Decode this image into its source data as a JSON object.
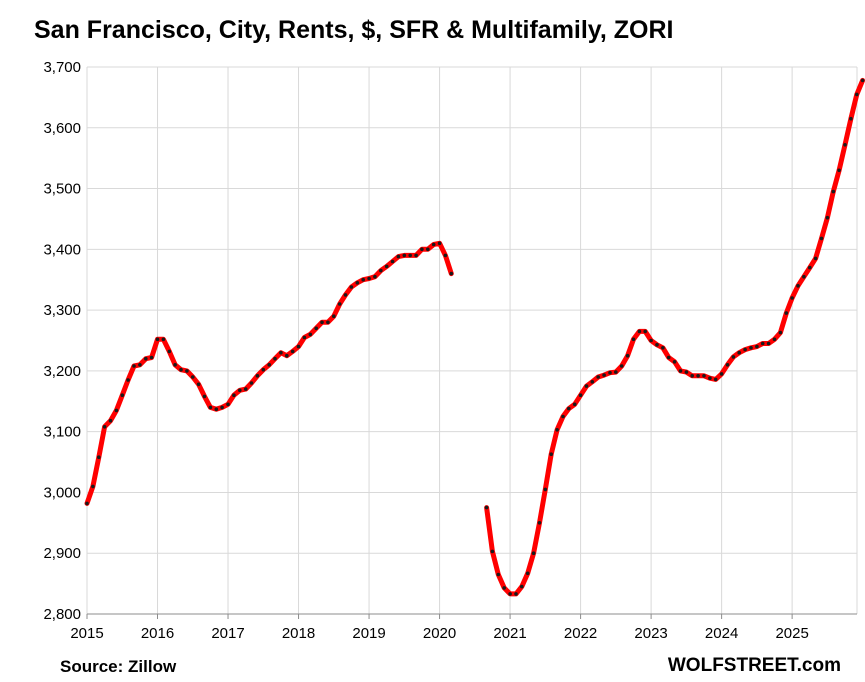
{
  "chart_data": {
    "type": "line",
    "title": "San Francisco, City, Rents, $, SFR & Multifamily, ZORI",
    "xlabel": "",
    "ylabel": "",
    "ylim": [
      2800,
      3700
    ],
    "xlim": [
      2015,
      2025.92
    ],
    "y_ticks": [
      "2,800",
      "2,900",
      "3,000",
      "3,100",
      "3,200",
      "3,300",
      "3,400",
      "3,500",
      "3,600",
      "3,700"
    ],
    "x_ticks": [
      "2015",
      "2016",
      "2017",
      "2018",
      "2019",
      "2020",
      "2021",
      "2022",
      "2023",
      "2024",
      "2025"
    ],
    "grid": true,
    "legend": "none",
    "series": [
      {
        "line_color": "#ff0000",
        "marker_color": "#1a1a1a",
        "segments": [
          [
            [
              "2015-01",
              2982
            ],
            [
              "2015-02",
              3010
            ],
            [
              "2015-03",
              3058
            ],
            [
              "2015-04",
              3108
            ],
            [
              "2015-05",
              3118
            ],
            [
              "2015-06",
              3135
            ],
            [
              "2015-07",
              3160
            ],
            [
              "2015-08",
              3185
            ],
            [
              "2015-09",
              3208
            ],
            [
              "2015-10",
              3210
            ],
            [
              "2015-11",
              3220
            ],
            [
              "2015-12",
              3222
            ],
            [
              "2016-01",
              3252
            ],
            [
              "2016-02",
              3252
            ],
            [
              "2016-03",
              3232
            ],
            [
              "2016-04",
              3210
            ],
            [
              "2016-05",
              3202
            ],
            [
              "2016-06",
              3200
            ],
            [
              "2016-07",
              3190
            ],
            [
              "2016-08",
              3178
            ],
            [
              "2016-09",
              3158
            ],
            [
              "2016-10",
              3140
            ],
            [
              "2016-11",
              3137
            ],
            [
              "2016-12",
              3140
            ],
            [
              "2017-01",
              3145
            ],
            [
              "2017-02",
              3160
            ],
            [
              "2017-03",
              3168
            ],
            [
              "2017-04",
              3170
            ],
            [
              "2017-05",
              3180
            ],
            [
              "2017-06",
              3192
            ],
            [
              "2017-07",
              3202
            ],
            [
              "2017-08",
              3210
            ],
            [
              "2017-09",
              3220
            ],
            [
              "2017-10",
              3230
            ],
            [
              "2017-11",
              3225
            ],
            [
              "2017-12",
              3232
            ],
            [
              "2018-01",
              3240
            ],
            [
              "2018-02",
              3255
            ],
            [
              "2018-03",
              3260
            ],
            [
              "2018-04",
              3270
            ],
            [
              "2018-05",
              3280
            ],
            [
              "2018-06",
              3280
            ],
            [
              "2018-07",
              3290
            ],
            [
              "2018-08",
              3310
            ],
            [
              "2018-09",
              3325
            ],
            [
              "2018-10",
              3338
            ],
            [
              "2018-11",
              3345
            ],
            [
              "2018-12",
              3350
            ],
            [
              "2019-01",
              3352
            ],
            [
              "2019-02",
              3355
            ],
            [
              "2019-03",
              3365
            ],
            [
              "2019-04",
              3372
            ],
            [
              "2019-05",
              3380
            ],
            [
              "2019-06",
              3388
            ],
            [
              "2019-07",
              3390
            ],
            [
              "2019-08",
              3390
            ],
            [
              "2019-09",
              3390
            ],
            [
              "2019-10",
              3400
            ],
            [
              "2019-11",
              3400
            ],
            [
              "2019-12",
              3408
            ],
            [
              "2020-01",
              3410
            ],
            [
              "2020-02",
              3390
            ],
            [
              "2020-03",
              3360
            ]
          ],
          [
            [
              "2020-09",
              2975
            ],
            [
              "2020-10",
              2903
            ],
            [
              "2020-11",
              2865
            ],
            [
              "2020-12",
              2843
            ],
            [
              "2021-01",
              2833
            ],
            [
              "2021-02",
              2833
            ],
            [
              "2021-03",
              2845
            ],
            [
              "2021-04",
              2867
            ],
            [
              "2021-05",
              2900
            ],
            [
              "2021-06",
              2950
            ],
            [
              "2021-07",
              3005
            ],
            [
              "2021-08",
              3063
            ],
            [
              "2021-09",
              3103
            ],
            [
              "2021-10",
              3125
            ],
            [
              "2021-11",
              3138
            ],
            [
              "2021-12",
              3145
            ],
            [
              "2022-01",
              3160
            ],
            [
              "2022-02",
              3175
            ],
            [
              "2022-03",
              3182
            ],
            [
              "2022-04",
              3190
            ],
            [
              "2022-05",
              3193
            ],
            [
              "2022-06",
              3197
            ],
            [
              "2022-07",
              3198
            ],
            [
              "2022-08",
              3208
            ],
            [
              "2022-09",
              3225
            ],
            [
              "2022-10",
              3252
            ],
            [
              "2022-11",
              3265
            ],
            [
              "2022-12",
              3265
            ],
            [
              "2023-01",
              3250
            ],
            [
              "2023-02",
              3243
            ],
            [
              "2023-03",
              3238
            ],
            [
              "2023-04",
              3222
            ],
            [
              "2023-05",
              3215
            ],
            [
              "2023-06",
              3200
            ],
            [
              "2023-07",
              3198
            ],
            [
              "2023-08",
              3192
            ],
            [
              "2023-09",
              3192
            ],
            [
              "2023-10",
              3192
            ],
            [
              "2023-11",
              3188
            ],
            [
              "2023-12",
              3186
            ],
            [
              "2024-01",
              3195
            ],
            [
              "2024-02",
              3210
            ],
            [
              "2024-03",
              3223
            ],
            [
              "2024-04",
              3230
            ],
            [
              "2024-05",
              3235
            ],
            [
              "2024-06",
              3238
            ],
            [
              "2024-07",
              3240
            ],
            [
              "2024-08",
              3245
            ],
            [
              "2024-09",
              3245
            ],
            [
              "2024-10",
              3252
            ],
            [
              "2024-11",
              3263
            ],
            [
              "2024-12",
              3295
            ],
            [
              "2025-01",
              3320
            ],
            [
              "2025-02",
              3340
            ],
            [
              "2025-03",
              3355
            ],
            [
              "2025-04",
              3370
            ],
            [
              "2025-05",
              3385
            ],
            [
              "2025-06",
              3418
            ],
            [
              "2025-07",
              3452
            ],
            [
              "2025-08",
              3495
            ],
            [
              "2025-09",
              3530
            ],
            [
              "2025-10",
              3572
            ],
            [
              "2025-11",
              3615
            ],
            [
              "2025-12",
              3655
            ],
            [
              "2026-01",
              3678
            ]
          ]
        ]
      }
    ],
    "source": "Source: Zillow",
    "brand": "WOLFSTREET.com"
  }
}
